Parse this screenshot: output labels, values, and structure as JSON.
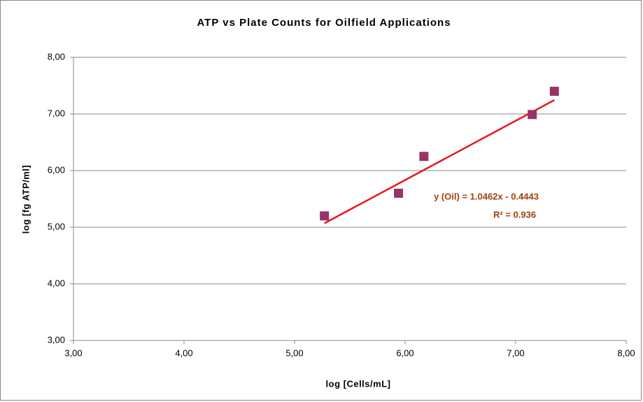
{
  "chart_data": {
    "type": "scatter",
    "title": "ATP vs Plate Counts for Oilfield Applications",
    "x_label": "log [Cells/mL]",
    "y_label": "log [fg ATP/ml]",
    "x": [
      5.27,
      5.94,
      6.17,
      7.15,
      7.35
    ],
    "series": [
      {
        "name": "Oil",
        "color": "#993366",
        "values": [
          5.2,
          5.6,
          6.25,
          6.99,
          7.4
        ]
      }
    ],
    "xlim": [
      3,
      8
    ],
    "ylim": [
      3,
      8
    ],
    "xticks": [
      {
        "value": 3,
        "label": "3,00"
      },
      {
        "value": 4,
        "label": "4,00"
      },
      {
        "value": 5,
        "label": "5,00"
      },
      {
        "value": 6,
        "label": "6,00"
      },
      {
        "value": 7,
        "label": "7,00"
      },
      {
        "value": 8,
        "label": "8,00"
      }
    ],
    "yticks": [
      {
        "value": 3,
        "label": "3,00"
      },
      {
        "value": 4,
        "label": "4,00"
      },
      {
        "value": 5,
        "label": "5,00"
      },
      {
        "value": 6,
        "label": "6,00"
      },
      {
        "value": 7,
        "label": "7,00"
      },
      {
        "value": 8,
        "label": "8,00"
      }
    ],
    "grid": true,
    "trendline": {
      "slope": 1.0462,
      "intercept": -0.4443,
      "color": "#e8161b",
      "equation": "y  (Oil) = 1.0462x  - 0.4443",
      "r_squared": "R² = 0.936"
    }
  }
}
